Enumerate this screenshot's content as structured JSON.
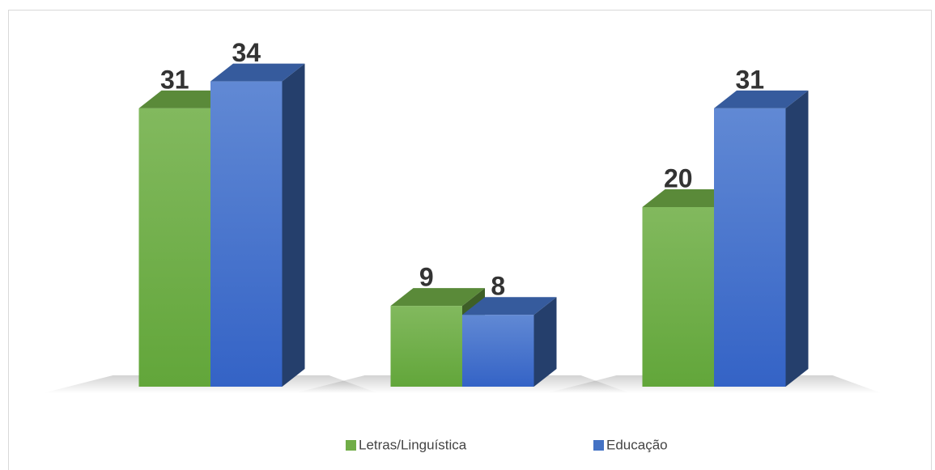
{
  "chart_data": {
    "type": "bar3d",
    "categories": [
      null,
      null,
      null
    ],
    "series": [
      {
        "name": "Letras/Linguística",
        "color": "#70ad47",
        "values": [
          31,
          9,
          20
        ]
      },
      {
        "name": "Educação",
        "color": "#4472c4",
        "values": [
          34,
          8,
          31
        ]
      }
    ],
    "legend": "bottom"
  }
}
